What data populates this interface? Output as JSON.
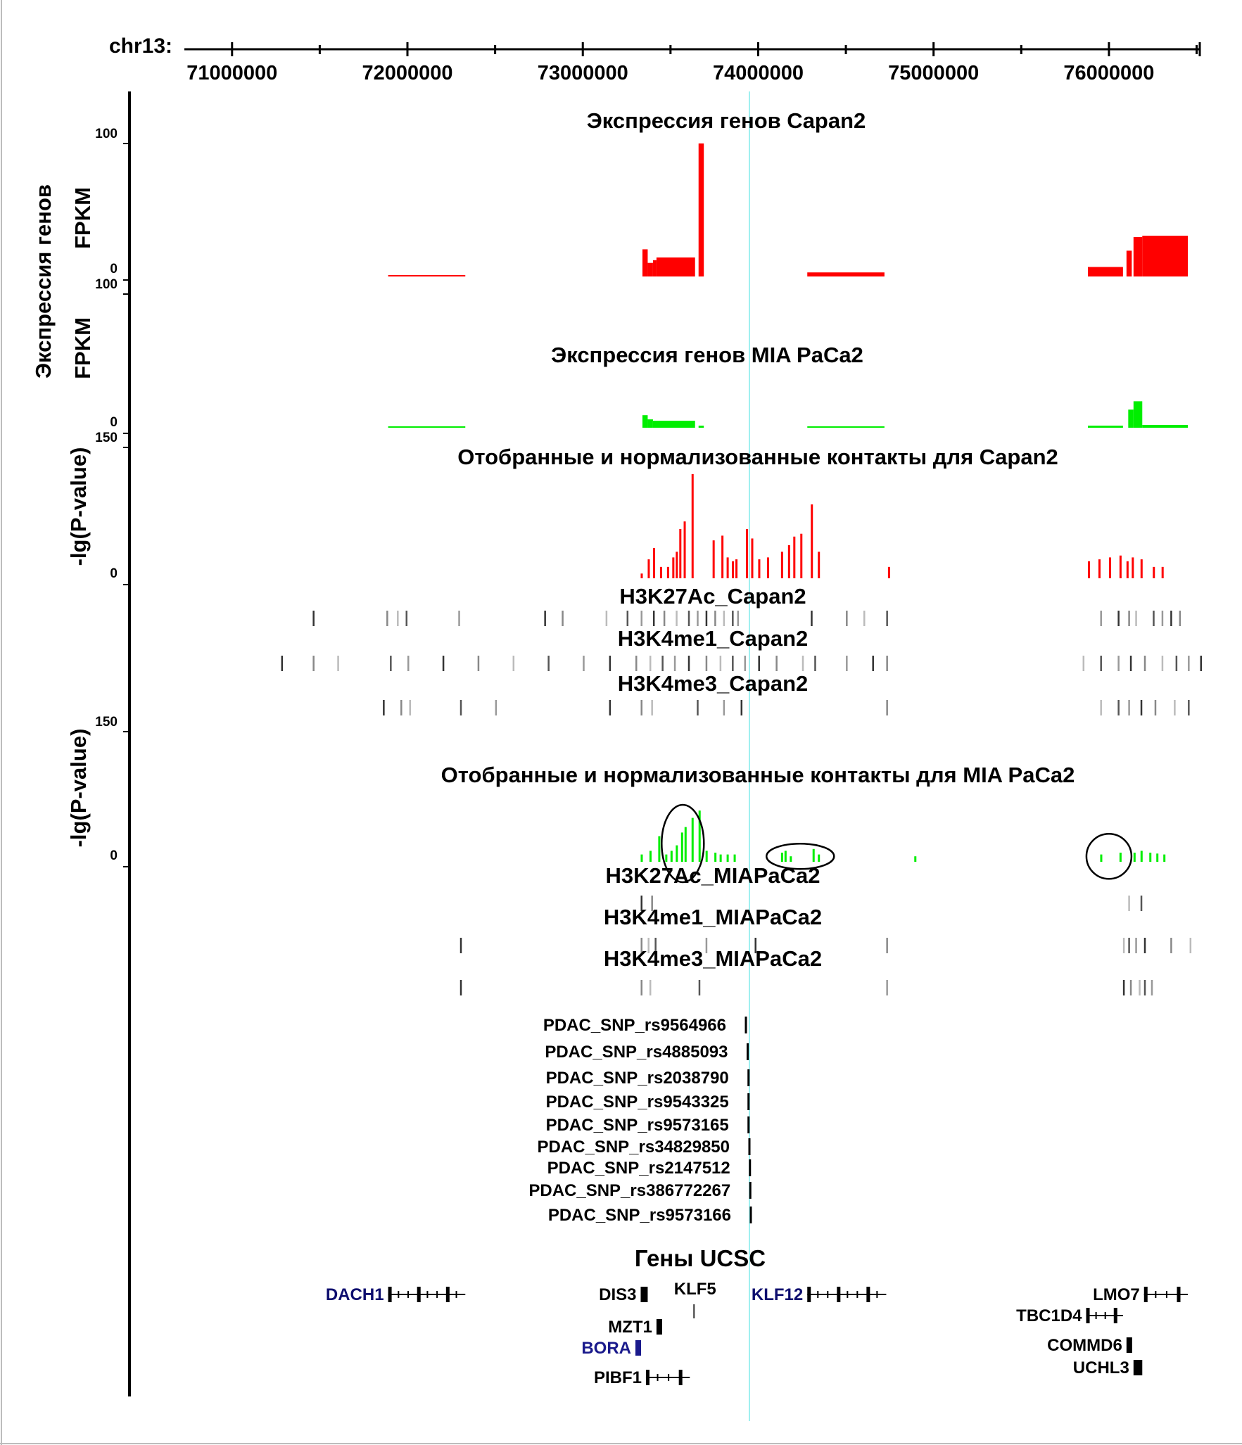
{
  "figure": {
    "chrom_label": "chr13:",
    "ylabel_fpkm_top": "Экспрессия генов",
    "ylabel_fpkm_bottom": "FPKM",
    "ylabel_pvalue": "-lg(P-value)"
  },
  "chart_data": {
    "type": "genome_browser",
    "chromosome": "chr13",
    "xlim": [
      70700000,
      76550000
    ],
    "x_ticks": [
      71000000,
      72000000,
      73000000,
      74000000,
      75000000,
      76000000
    ],
    "x_tick_labels": [
      "71000000",
      "72000000",
      "73000000",
      "74000000",
      "75000000",
      "76000000"
    ],
    "highlight_position": 73950000,
    "expression_tracks": [
      {
        "title": "Экспрессия генов  Capan2",
        "ylabel": "Экспрессия генов FPKM",
        "y_top_label": "100",
        "y_bottom_label": "0",
        "ylim": [
          0,
          100
        ],
        "color": "#ff0000",
        "segments": [
          {
            "start": 71890000,
            "end": 72330000,
            "value": 0.8
          },
          {
            "start": 73340000,
            "end": 73370000,
            "value": 20
          },
          {
            "start": 73370000,
            "end": 73400000,
            "value": 10
          },
          {
            "start": 73400000,
            "end": 73420000,
            "value": 12
          },
          {
            "start": 73420000,
            "end": 73640000,
            "value": 14
          },
          {
            "start": 73660000,
            "end": 73690000,
            "value": 98
          },
          {
            "start": 74280000,
            "end": 74720000,
            "value": 3
          },
          {
            "start": 75880000,
            "end": 76080000,
            "value": 7
          },
          {
            "start": 76100000,
            "end": 76130000,
            "value": 19
          },
          {
            "start": 76140000,
            "end": 76190000,
            "value": 29
          },
          {
            "start": 76190000,
            "end": 76450000,
            "value": 30
          }
        ]
      },
      {
        "title": "Экспрессия генов  MIA PaCa2",
        "ylabel": "FPKM",
        "y_top_label": "100",
        "y_bottom_label": "0",
        "ylim": [
          0,
          100
        ],
        "color": "#00ee00",
        "segments": [
          {
            "start": 71890000,
            "end": 72330000,
            "value": 1
          },
          {
            "start": 73340000,
            "end": 73370000,
            "value": 9
          },
          {
            "start": 73370000,
            "end": 73400000,
            "value": 6
          },
          {
            "start": 73400000,
            "end": 73640000,
            "value": 5
          },
          {
            "start": 73660000,
            "end": 73690000,
            "value": 1.5
          },
          {
            "start": 74280000,
            "end": 74720000,
            "value": 1
          },
          {
            "start": 75880000,
            "end": 76080000,
            "value": 1.5
          },
          {
            "start": 76110000,
            "end": 76140000,
            "value": 13
          },
          {
            "start": 76140000,
            "end": 76190000,
            "value": 19
          },
          {
            "start": 76190000,
            "end": 76450000,
            "value": 2
          }
        ]
      }
    ],
    "contact_tracks": [
      {
        "title": "Отобранные и нормализованные контакты для Capan2",
        "ylabel": "-lg(P-value)",
        "y_top_label": "150",
        "y_bottom_label": "0",
        "ylim": [
          0,
          150
        ],
        "color": "#ff0000",
        "bars": [
          [
            73330000,
            5
          ],
          [
            73370000,
            20
          ],
          [
            73400000,
            32
          ],
          [
            73440000,
            12
          ],
          [
            73480000,
            12
          ],
          [
            73510000,
            22
          ],
          [
            73530000,
            28
          ],
          [
            73550000,
            52
          ],
          [
            73575000,
            60
          ],
          [
            73620000,
            110
          ],
          [
            73740000,
            40
          ],
          [
            73790000,
            45
          ],
          [
            73820000,
            22
          ],
          [
            73850000,
            18
          ],
          [
            73870000,
            20
          ],
          [
            73930000,
            52
          ],
          [
            73960000,
            42
          ],
          [
            74000000,
            20
          ],
          [
            74050000,
            22
          ],
          [
            74130000,
            28
          ],
          [
            74170000,
            35
          ],
          [
            74200000,
            44
          ],
          [
            74240000,
            47
          ],
          [
            74300000,
            78
          ],
          [
            74340000,
            28
          ],
          [
            74740000,
            12
          ],
          [
            75880000,
            18
          ],
          [
            75940000,
            20
          ],
          [
            76000000,
            22
          ],
          [
            76060000,
            24
          ],
          [
            76100000,
            18
          ],
          [
            76130000,
            22
          ],
          [
            76180000,
            20
          ],
          [
            76250000,
            12
          ],
          [
            76300000,
            12
          ]
        ],
        "annotations": [
          {
            "label": "H3K27Ac_Capan2",
            "peaks": [
              71460000,
              71880000,
              71940000,
              71990000,
              72290000,
              72780000,
              72880000,
              73130000,
              73250000,
              73330000,
              73400000,
              73460000,
              73530000,
              73600000,
              73650000,
              73700000,
              73750000,
              73800000,
              73850000,
              73880000,
              74300000,
              74500000,
              74600000,
              74730000,
              75950000,
              76050000,
              76110000,
              76150000,
              76250000,
              76300000,
              76350000,
              76400000
            ]
          },
          {
            "label": "H3K4me1_Capan2",
            "peaks": [
              71280000,
              71460000,
              71600000,
              71900000,
              72000000,
              72200000,
              72400000,
              72600000,
              72800000,
              73000000,
              73150000,
              73300000,
              73380000,
              73450000,
              73520000,
              73600000,
              73700000,
              73780000,
              73850000,
              73920000,
              74000000,
              74100000,
              74250000,
              74320000,
              74500000,
              74650000,
              74730000,
              75850000,
              75950000,
              76050000,
              76120000,
              76200000,
              76300000,
              76380000,
              76450000,
              76520000
            ]
          },
          {
            "label": "H3K4me3_Capan2",
            "peaks": [
              71860000,
              71960000,
              72010000,
              72300000,
              72500000,
              73150000,
              73330000,
              73390000,
              73650000,
              73800000,
              73900000,
              74730000,
              75950000,
              76050000,
              76110000,
              76180000,
              76260000,
              76370000,
              76450000
            ]
          }
        ]
      },
      {
        "title": "Отобранные и нормализованные контакты для MIA PaCa2",
        "ylabel": "-lg(P-value)",
        "y_top_label": "150",
        "y_bottom_label": "0",
        "ylim": [
          0,
          150
        ],
        "color": "#00ee00",
        "bars": [
          [
            73330000,
            8
          ],
          [
            73380000,
            12
          ],
          [
            73430000,
            28
          ],
          [
            73470000,
            8
          ],
          [
            73500000,
            12
          ],
          [
            73530000,
            18
          ],
          [
            73560000,
            32
          ],
          [
            73580000,
            38
          ],
          [
            73620000,
            48
          ],
          [
            73660000,
            56
          ],
          [
            73700000,
            12
          ],
          [
            73750000,
            10
          ],
          [
            73780000,
            8
          ],
          [
            73820000,
            8
          ],
          [
            73860000,
            8
          ],
          [
            74130000,
            10
          ],
          [
            74150000,
            12
          ],
          [
            74180000,
            6
          ],
          [
            74310000,
            14
          ],
          [
            74340000,
            8
          ],
          [
            74890000,
            6
          ],
          [
            75950000,
            8
          ],
          [
            76060000,
            10
          ],
          [
            76140000,
            10
          ],
          [
            76180000,
            12
          ],
          [
            76230000,
            10
          ],
          [
            76270000,
            9
          ],
          [
            76310000,
            8
          ]
        ],
        "circled_regions": [
          {
            "center": 73570000,
            "value_center": 20
          },
          {
            "center": 74240000,
            "value_center": 6
          },
          {
            "center": 76000000,
            "value_center": 6
          }
        ],
        "annotations": [
          {
            "label": "H3K27Ac_MIAPaCa2",
            "peaks": [
              73330000,
              73390000,
              76110000,
              76180000
            ]
          },
          {
            "label": "H3K4me1_MIAPaCa2",
            "peaks": [
              72300000,
              73330000,
              73370000,
              73410000,
              73700000,
              73980000,
              74730000,
              76080000,
              76110000,
              76150000,
              76200000,
              76350000,
              76460000
            ]
          },
          {
            "label": "H3K4me3_MIAPaCa2",
            "peaks": [
              72300000,
              73330000,
              73380000,
              73660000,
              74730000,
              76080000,
              76120000,
              76170000,
              76200000,
              76240000
            ]
          }
        ]
      }
    ],
    "snps": [
      {
        "label": "PDAC_SNP_rs9564966",
        "position": 73930000
      },
      {
        "label": "PDAC_SNP_rs4885093",
        "position": 73940000
      },
      {
        "label": "PDAC_SNP_rs2038790",
        "position": 73945000
      },
      {
        "label": "PDAC_SNP_rs9543325",
        "position": 73945000
      },
      {
        "label": "PDAC_SNP_rs9573165",
        "position": 73945000
      },
      {
        "label": "PDAC_SNP_rs34829850",
        "position": 73950000
      },
      {
        "label": "PDAC_SNP_rs2147512",
        "position": 73953000
      },
      {
        "label": "PDAC_SNP_rs386772267",
        "position": 73955000
      },
      {
        "label": "PDAC_SNP_rs9573166",
        "position": 73958000
      }
    ],
    "genes_title": "Гены UCSC",
    "genes": [
      {
        "name": "DACH1",
        "start": 71890000,
        "end": 72330000,
        "label_side": "left",
        "color": "#0d0d6e",
        "exon_density": "high",
        "row": 0
      },
      {
        "name": "DIS3",
        "start": 73330000,
        "end": 73370000,
        "label_side": "left",
        "color": "#000000",
        "exon_density": "solid",
        "row": 0
      },
      {
        "name": "KLF5",
        "start": 73630000,
        "end": 73650000,
        "label_side": "above",
        "color": "#000000",
        "exon_density": "thin",
        "row": 0
      },
      {
        "name": "KLF12",
        "start": 74280000,
        "end": 74730000,
        "label_side": "left",
        "color": "#0d0d6e",
        "exon_density": "high",
        "row": 0
      },
      {
        "name": "MZT1",
        "start": 73420000,
        "end": 73440000,
        "label_side": "left",
        "color": "#000000",
        "exon_density": "solid",
        "row": 1
      },
      {
        "name": "BORA",
        "start": 73300000,
        "end": 73320000,
        "label_side": "left",
        "color": "#1a1a8c",
        "exon_density": "solid",
        "row": 2
      },
      {
        "name": "PIBF1",
        "start": 73360000,
        "end": 73610000,
        "label_side": "left",
        "color": "#000000",
        "exon_density": "high",
        "row": 3
      },
      {
        "name": "LMO7",
        "start": 76200000,
        "end": 76450000,
        "label_side": "left",
        "color": "#000000",
        "exon_density": "high",
        "row": 0
      },
      {
        "name": "TBC1D4",
        "start": 75870000,
        "end": 76080000,
        "label_side": "left",
        "color": "#000000",
        "exon_density": "high",
        "row": 1
      },
      {
        "name": "COMMD6",
        "start": 76100000,
        "end": 76120000,
        "label_side": "left",
        "color": "#000000",
        "exon_density": "solid",
        "row": 2
      },
      {
        "name": "UCHL3",
        "start": 76140000,
        "end": 76190000,
        "label_side": "left",
        "color": "#000000",
        "exon_density": "solid",
        "row": 3
      }
    ]
  }
}
